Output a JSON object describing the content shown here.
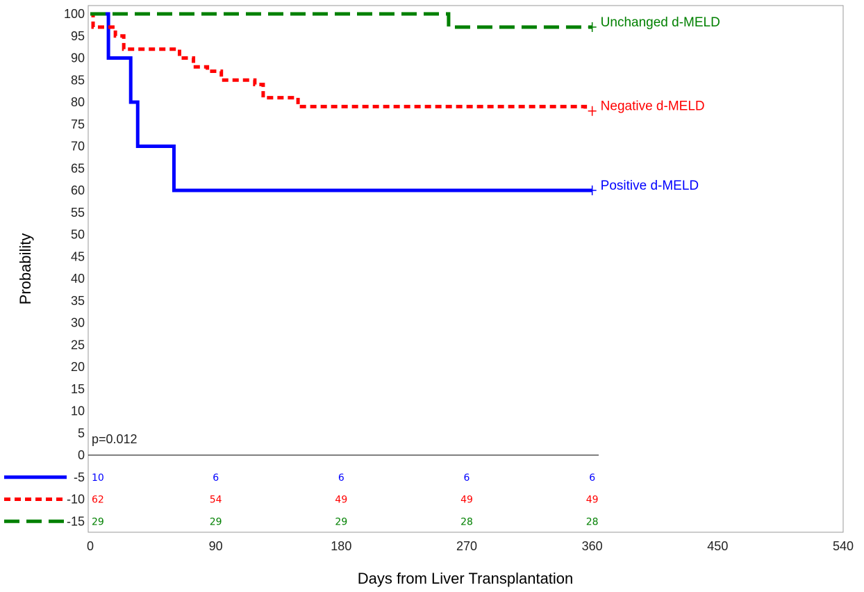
{
  "chart_data": {
    "type": "line",
    "subtype": "kaplan-meier step",
    "xlabel": "Days from Liver Transplantation",
    "ylabel": "Probability",
    "xlim": [
      0,
      540
    ],
    "ylim": [
      -18,
      100
    ],
    "x_ticks": [
      0,
      90,
      180,
      270,
      360,
      450,
      540
    ],
    "y_ticks": [
      -15,
      -10,
      -5,
      0,
      5,
      10,
      15,
      20,
      25,
      30,
      35,
      40,
      45,
      50,
      55,
      60,
      65,
      70,
      75,
      80,
      85,
      90,
      95,
      100
    ],
    "grid": false,
    "annotation": "p=0.012",
    "series": [
      {
        "name": "Positive d-MELD",
        "color": "#0000ff",
        "line_style": "solid",
        "steps": [
          [
            0,
            100
          ],
          [
            13,
            90
          ],
          [
            29,
            80
          ],
          [
            34,
            70
          ],
          [
            60,
            60
          ],
          [
            360,
            60
          ]
        ],
        "censor": [
          360,
          60
        ],
        "risk_row_y": -5,
        "at_risk": [
          10,
          6,
          6,
          6,
          6
        ]
      },
      {
        "name": "Negative d-MELD",
        "color": "#ff0000",
        "line_style": "short-dash",
        "steps": [
          [
            0,
            100
          ],
          [
            2,
            97
          ],
          [
            18,
            95
          ],
          [
            24,
            92
          ],
          [
            64,
            90
          ],
          [
            74,
            88
          ],
          [
            84,
            87
          ],
          [
            94,
            85
          ],
          [
            118,
            84
          ],
          [
            124,
            81
          ],
          [
            149,
            79
          ],
          [
            355,
            79
          ],
          [
            355,
            78
          ]
        ],
        "censor": [
          360,
          78
        ],
        "risk_row_y": -10,
        "at_risk": [
          62,
          54,
          49,
          49,
          49
        ]
      },
      {
        "name": "Unchanged d-MELD",
        "color": "#008000",
        "line_style": "long-dash",
        "steps": [
          [
            0,
            100
          ],
          [
            255,
            100
          ],
          [
            257,
            97
          ],
          [
            360,
            97
          ]
        ],
        "censor": [
          360,
          97
        ],
        "risk_row_y": -15,
        "at_risk": [
          29,
          29,
          29,
          28,
          28
        ]
      }
    ],
    "at_risk_x": [
      0,
      90,
      180,
      270,
      360
    ]
  }
}
